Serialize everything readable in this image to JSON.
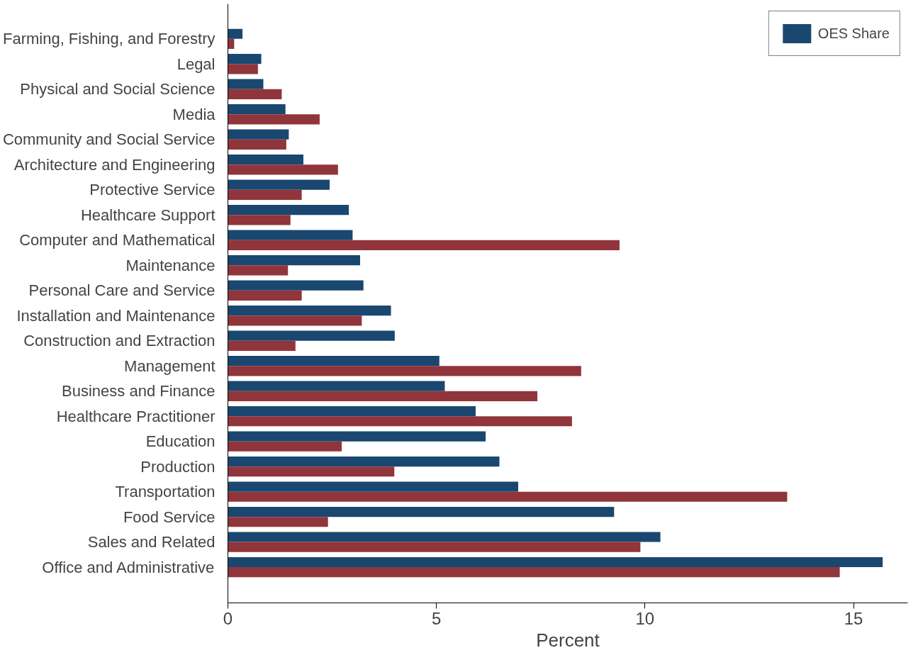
{
  "chart_data": {
    "type": "bar",
    "orientation": "horizontal",
    "xlabel": "Percent",
    "categories": [
      "Farming, Fishing, and Forestry",
      "Legal",
      "Physical and Social Science",
      "Media",
      "Community and Social Service",
      "Architecture and Engineering",
      "Protective Service",
      "Healthcare Support",
      "Computer and Mathematical",
      "Maintenance",
      "Personal Care and Service",
      "Installation and Maintenance",
      "Construction and Extraction",
      "Management",
      "Business and Finance",
      "Healthcare Practitioner",
      "Education",
      "Production",
      "Transportation",
      "Food Service",
      "Sales and Related",
      "Office and Administrative"
    ],
    "series": [
      {
        "name": "OES Share",
        "color": "#1a476f",
        "values": [
          0.35,
          0.8,
          0.85,
          1.38,
          1.46,
          1.81,
          2.44,
          2.9,
          2.99,
          3.17,
          3.25,
          3.91,
          4.0,
          5.07,
          5.2,
          5.94,
          6.18,
          6.51,
          6.96,
          9.26,
          10.37,
          15.7
        ]
      },
      {
        "color": "#90353b",
        "values": [
          0.15,
          0.72,
          1.29,
          2.2,
          1.4,
          2.64,
          1.77,
          1.5,
          9.39,
          1.44,
          1.77,
          3.21,
          1.62,
          8.47,
          7.42,
          8.25,
          2.73,
          3.99,
          13.41,
          2.4,
          9.89,
          14.67
        ]
      }
    ],
    "xlim": [
      0,
      16.3
    ],
    "xticks": [
      0,
      5,
      10,
      15
    ],
    "grid": false,
    "legend": "top right"
  }
}
